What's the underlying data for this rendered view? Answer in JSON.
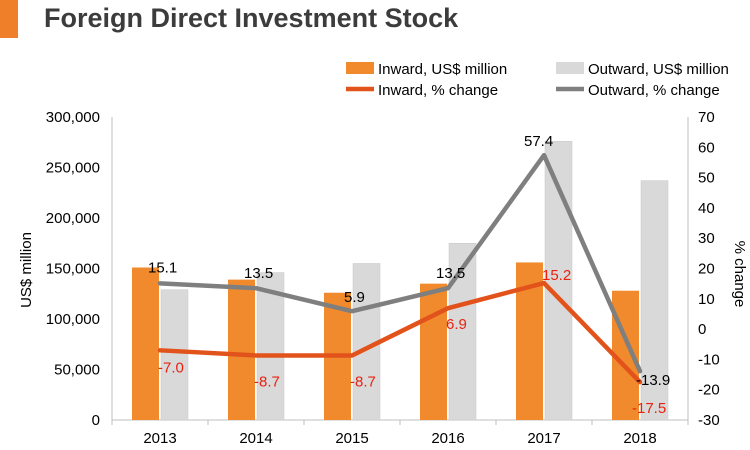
{
  "header": {
    "title": "Foreign Direct Investment Stock",
    "accent_color": "#f07f2a"
  },
  "chart_data": {
    "type": "bar",
    "title": "Foreign Direct Investment Stock",
    "categories": [
      "2013",
      "2014",
      "2015",
      "2016",
      "2017",
      "2018"
    ],
    "ylabel": "US$ million",
    "ylabel_right": "% change",
    "ylim": [
      0,
      300000
    ],
    "ylim_right": [
      -30,
      70
    ],
    "yticks": [
      "0",
      "50,000",
      "100,000",
      "150,000",
      "200,000",
      "250,000",
      "300,000"
    ],
    "yticks_right": [
      "-30",
      "-20",
      "-10",
      "0",
      "10",
      "20",
      "30",
      "40",
      "50",
      "60",
      "70"
    ],
    "grid": false,
    "legend_position": "top-right",
    "bar_series": [
      {
        "name": "Inward, US$ million",
        "color": "#f08a2c",
        "values": [
          151000,
          139000,
          126000,
          135000,
          156000,
          128000
        ]
      },
      {
        "name": "Outward, US$ million",
        "color": "#d9d9d9",
        "values": [
          129000,
          146000,
          155000,
          175000,
          276000,
          237000
        ]
      }
    ],
    "line_series": [
      {
        "name": "Inward, % change",
        "color": "#e2531b",
        "values": [
          -7.0,
          -8.7,
          -8.7,
          6.9,
          15.2,
          -17.5
        ],
        "labels": [
          "-7.0",
          "-8.7",
          "-8.7",
          "6.9",
          "15.2",
          "-17.5"
        ],
        "label_color": "#e8220f"
      },
      {
        "name": "Outward, % change",
        "color": "#7f7f7f",
        "values": [
          15.1,
          13.5,
          5.9,
          13.5,
          57.4,
          -13.9
        ],
        "labels": [
          "15.1",
          "13.5",
          "5.9",
          "13.5",
          "57.4",
          "-13.9"
        ],
        "label_color": "#000000"
      }
    ]
  }
}
